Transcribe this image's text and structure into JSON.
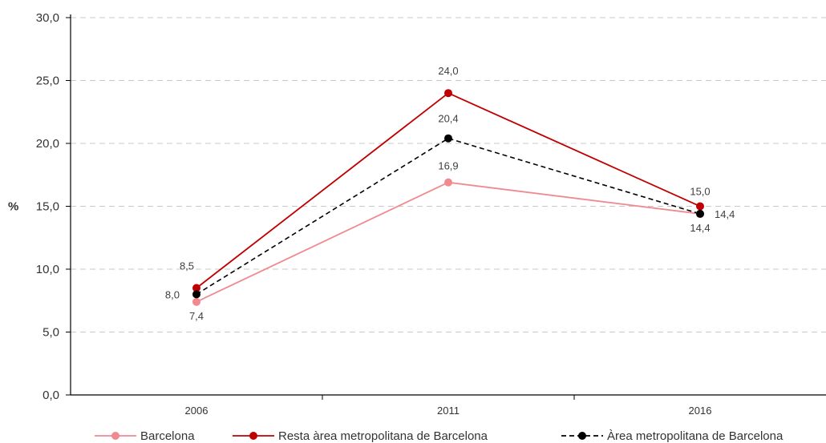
{
  "chart_data": {
    "type": "line",
    "ylabel": "%",
    "ylim": [
      0,
      30
    ],
    "yticks": [
      "0,0",
      "5,0",
      "10,0",
      "15,0",
      "20,0",
      "25,0",
      "30,0"
    ],
    "categories": [
      "2006",
      "2011",
      "2016"
    ],
    "grid": true,
    "legend_position": "bottom",
    "series": [
      {
        "name": "Barcelona",
        "values": [
          7.4,
          16.9,
          14.4
        ],
        "labels": [
          "7,4",
          "16,9",
          "14,4"
        ],
        "color": "#f08a8f",
        "dashed": false
      },
      {
        "name": "Resta àrea metropolitana de Barcelona",
        "values": [
          8.5,
          24.0,
          15.0
        ],
        "labels": [
          "8,5",
          "24,0",
          "15,0"
        ],
        "color": "#c00000",
        "dashed": false
      },
      {
        "name": "Àrea metropolitana de Barcelona",
        "values": [
          8.0,
          20.4,
          14.4
        ],
        "labels": [
          "8,0",
          "20,4",
          "14,4"
        ],
        "color": "#000000",
        "dashed": true
      }
    ]
  }
}
